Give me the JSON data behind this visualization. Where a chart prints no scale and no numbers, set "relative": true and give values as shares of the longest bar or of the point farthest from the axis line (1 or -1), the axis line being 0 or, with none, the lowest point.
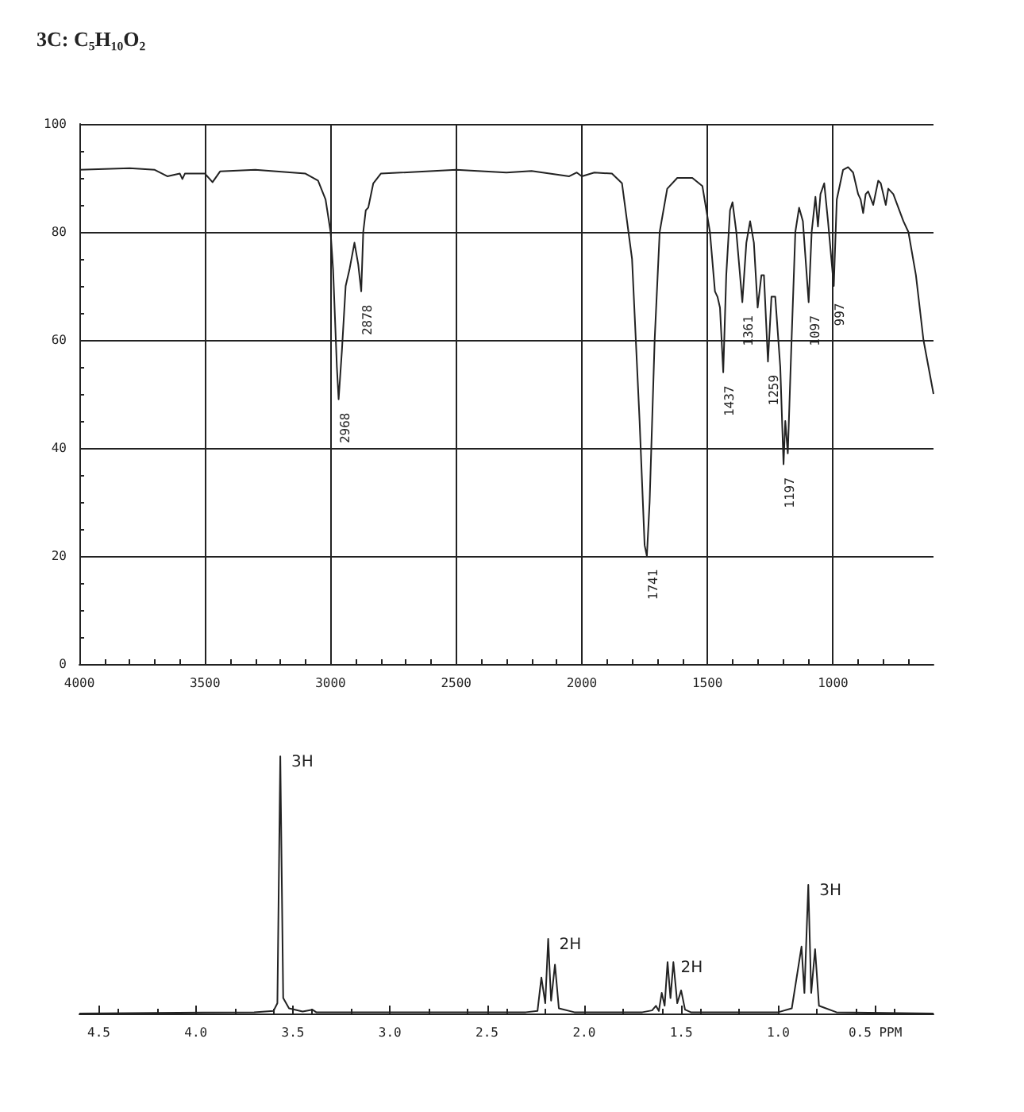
{
  "chart_data": [
    {
      "type": "line",
      "title": "3C: C₅H₁₀O₂",
      "xlim": [
        4000,
        600
      ],
      "xticks": [
        4000,
        3500,
        3000,
        2500,
        2000,
        1500,
        1000
      ],
      "ylim": [
        0,
        100
      ],
      "yticks": [
        0,
        20,
        40,
        60,
        80,
        100
      ],
      "grid": true,
      "marker": "none",
      "line_style": "solid",
      "series": [
        {
          "color": "#222222",
          "x": [
            4000,
            3800,
            3700,
            3650,
            3600,
            3590,
            3580,
            3500,
            3470,
            3440,
            3300,
            3100,
            3050,
            3020,
            3000,
            2990,
            2975,
            2968,
            2955,
            2940,
            2925,
            2905,
            2890,
            2878,
            2870,
            2860,
            2850,
            2830,
            2800,
            2500,
            2300,
            2200,
            2050,
            2020,
            2000,
            1950,
            1880,
            1840,
            1800,
            1770,
            1750,
            1741,
            1730,
            1710,
            1690,
            1660,
            1620,
            1560,
            1520,
            1490,
            1470,
            1460,
            1450,
            1437,
            1425,
            1410,
            1400,
            1385,
            1361,
            1345,
            1330,
            1315,
            1300,
            1285,
            1275,
            1259,
            1245,
            1230,
            1210,
            1197,
            1190,
            1180,
            1165,
            1150,
            1135,
            1120,
            1097,
            1085,
            1070,
            1060,
            1050,
            1035,
            1020,
            997,
            985,
            960,
            940,
            920,
            900,
            890,
            880,
            870,
            860,
            840,
            820,
            810,
            790,
            780,
            760,
            740,
            720,
            700,
            670,
            640,
            600
          ],
          "values": [
            91.5,
            91.8,
            91.5,
            90.3,
            90.8,
            89.8,
            90.8,
            90.8,
            89.2,
            91.2,
            91.5,
            90.8,
            89.5,
            86,
            80,
            73,
            55,
            49,
            58,
            70,
            73,
            78,
            74,
            69,
            80,
            84,
            84.5,
            89,
            90.8,
            91.5,
            91,
            91.3,
            90.3,
            91,
            90.3,
            91,
            90.8,
            89,
            75,
            45,
            22,
            20,
            30,
            60,
            80,
            88,
            90,
            90,
            88.5,
            80,
            69,
            68,
            66,
            54,
            72,
            84,
            85.5,
            80,
            67,
            78,
            82,
            78,
            66,
            72,
            72,
            56,
            68,
            68,
            55,
            37,
            45,
            39,
            60,
            80,
            84.5,
            82,
            67,
            80,
            86.5,
            81,
            87,
            89,
            82,
            70,
            86,
            91.5,
            92,
            91,
            87,
            86,
            83.5,
            87,
            87.5,
            85,
            89.5,
            89,
            85,
            88,
            87,
            84.5,
            82,
            80,
            72,
            60,
            50
          ]
        }
      ],
      "annotations": [
        {
          "text": "2968",
          "x": 2968,
          "y": 49
        },
        {
          "text": "2878",
          "x": 2878,
          "y": 69
        },
        {
          "text": "1741",
          "x": 1741,
          "y": 20
        },
        {
          "text": "1437",
          "x": 1437,
          "y": 54
        },
        {
          "text": "1361",
          "x": 1361,
          "y": 67
        },
        {
          "text": "1259",
          "x": 1259,
          "y": 56
        },
        {
          "text": "1197",
          "x": 1197,
          "y": 37
        },
        {
          "text": "1097",
          "x": 1097,
          "y": 67
        },
        {
          "text": "997",
          "x": 997,
          "y": 70
        }
      ]
    },
    {
      "type": "line",
      "relative": true,
      "xlim": [
        4.6,
        0.2
      ],
      "xticks": [
        {
          "value": 4.5,
          "label": "4.5"
        },
        {
          "value": 4,
          "label": "4.0"
        },
        {
          "value": 3.5,
          "label": "3.5"
        },
        {
          "value": 3,
          "label": "3.0"
        },
        {
          "value": 2.5,
          "label": "2.5"
        },
        {
          "value": 2,
          "label": "2.0"
        },
        {
          "value": 1.5,
          "label": "1.5"
        },
        {
          "value": 1,
          "label": "1.0"
        },
        {
          "value": 0.5,
          "label": "0.5 PPM"
        }
      ],
      "marker": "none",
      "line_style": "solid",
      "series": [
        {
          "color": "#222222",
          "x": [
            4.6,
            3.7,
            3.6,
            3.58,
            3.565,
            3.55,
            3.52,
            3.45,
            3.4,
            3.38,
            2.3,
            2.24,
            2.22,
            2.2,
            2.185,
            2.17,
            2.15,
            2.13,
            2.05,
            1.7,
            1.65,
            1.63,
            1.615,
            1.6,
            1.585,
            1.57,
            1.555,
            1.54,
            1.52,
            1.5,
            1.48,
            1.45,
            1.0,
            0.93,
            0.88,
            0.865,
            0.845,
            0.83,
            0.81,
            0.79,
            0.7,
            0.2
          ],
          "values": [
            0,
            0.005,
            0.01,
            0.04,
            1,
            0.06,
            0.02,
            0.008,
            0.015,
            0.005,
            0.005,
            0.01,
            0.14,
            0.04,
            0.29,
            0.05,
            0.19,
            0.02,
            0.005,
            0.005,
            0.012,
            0.03,
            0.01,
            0.08,
            0.03,
            0.2,
            0.06,
            0.2,
            0.04,
            0.09,
            0.015,
            0.005,
            0.005,
            0.02,
            0.26,
            0.08,
            0.5,
            0.08,
            0.25,
            0.03,
            0.005,
            0
          ]
        }
      ],
      "annotations": [
        {
          "text": "3H",
          "x": 3.565,
          "y": 1
        },
        {
          "text": "2H",
          "x": 2.185,
          "y": 0.29
        },
        {
          "text": "2H",
          "x": 1.56,
          "y": 0.2
        },
        {
          "text": "3H",
          "x": 0.845,
          "y": 0.5
        }
      ]
    }
  ]
}
